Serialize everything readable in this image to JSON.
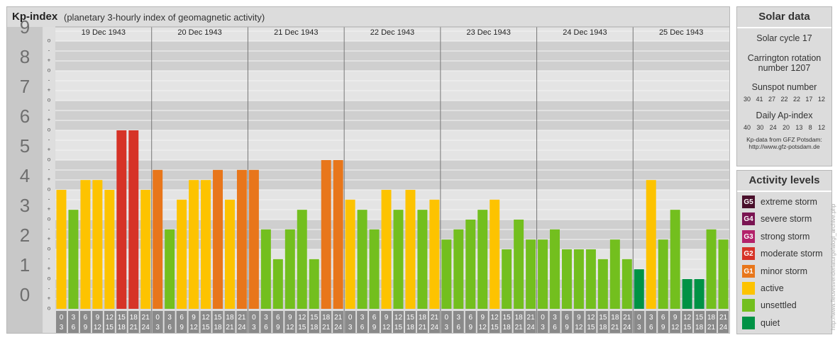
{
  "title": "Kp-index",
  "subtitle": "(planetary 3-hourly index of geomagnetic activity)",
  "chart_data": {
    "type": "bar",
    "y_ticks": [
      "0",
      "1",
      "2",
      "3",
      "4",
      "5",
      "6",
      "7",
      "8",
      "9"
    ],
    "minor_ticks": [
      "-",
      "o",
      "+"
    ],
    "days": [
      "19 Dec 1943",
      "20 Dec 1943",
      "21 Dec 1943",
      "22 Dec 1943",
      "23 Dec 1943",
      "24 Dec 1943",
      "25 Dec 1943"
    ],
    "hour_labels": [
      [
        "0",
        "3"
      ],
      [
        "3",
        "6"
      ],
      [
        "6",
        "9"
      ],
      [
        "9",
        "12"
      ],
      [
        "12",
        "15"
      ],
      [
        "15",
        "18"
      ],
      [
        "18",
        "21"
      ],
      [
        "21",
        "24"
      ]
    ],
    "ylim": [
      0,
      9.33
    ],
    "values": [
      [
        4.0,
        3.33,
        4.33,
        4.33,
        4.0,
        6.0,
        6.0,
        4.0
      ],
      [
        4.67,
        2.67,
        3.67,
        4.33,
        4.33,
        4.67,
        3.67,
        4.67
      ],
      [
        4.67,
        2.67,
        1.67,
        2.67,
        3.33,
        1.67,
        5.0,
        5.0
      ],
      [
        3.67,
        3.33,
        2.67,
        4.0,
        3.33,
        4.0,
        3.33,
        3.67
      ],
      [
        2.33,
        2.67,
        3.0,
        3.33,
        3.67,
        2.0,
        3.0,
        2.33
      ],
      [
        2.33,
        2.67,
        2.0,
        2.0,
        2.0,
        1.67,
        2.33,
        1.67
      ],
      [
        1.33,
        4.33,
        2.33,
        3.33,
        1.0,
        1.0,
        2.67,
        2.33
      ]
    ],
    "colors": {
      "quiet": "#009245",
      "unsettled": "#73bf1e",
      "active": "#fdc300",
      "g1": "#e8761b",
      "g2": "#d63327",
      "g3": "#b3226a",
      "g4": "#7a1452",
      "g5": "#4a0f2b"
    }
  },
  "solar": {
    "heading": "Solar data",
    "cycle": "Solar cycle 17",
    "carrington_line1": "Carrington rotation",
    "carrington_line2": "number 1207",
    "sunspot_heading": "Sunspot number",
    "sunspots": [
      "30",
      "41",
      "27",
      "22",
      "22",
      "17",
      "12"
    ],
    "ap_heading": "Daily Ap-index",
    "ap": [
      "40",
      "30",
      "24",
      "20",
      "13",
      "8",
      "12"
    ],
    "credit1": "Kp-data from GFZ Potsdam:",
    "credit2": "http://www.gfz-potsdam.de"
  },
  "activity": {
    "heading": "Activity levels",
    "items": [
      {
        "code": "G5",
        "label": "extreme storm",
        "color": "#4a0f2b"
      },
      {
        "code": "G4",
        "label": "severe storm",
        "color": "#7a1452"
      },
      {
        "code": "G3",
        "label": "strong storm",
        "color": "#b3226a"
      },
      {
        "code": "G2",
        "label": "moderate storm",
        "color": "#d63327"
      },
      {
        "code": "G1",
        "label": "minor storm",
        "color": "#e8761b"
      },
      {
        "code": "",
        "label": "active",
        "color": "#fdc300"
      },
      {
        "code": "",
        "label": "unsettled",
        "color": "#73bf1e"
      },
      {
        "code": "",
        "label": "quiet",
        "color": "#009245"
      }
    ]
  },
  "watermark": "http://www.fleuvesvenderlaturgefalogi_archive.php"
}
